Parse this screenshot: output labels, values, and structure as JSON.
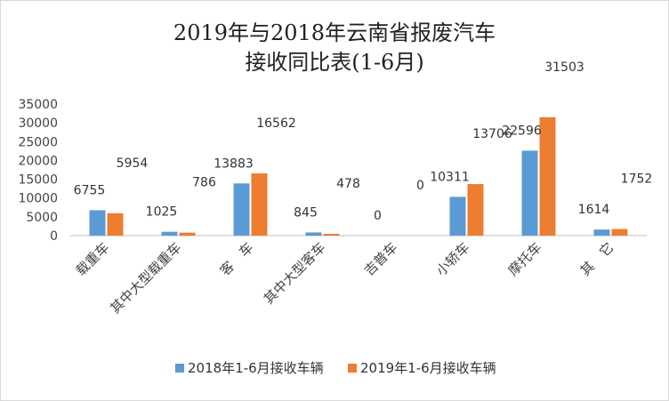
{
  "chart_data": {
    "type": "bar",
    "title": [
      "2019年与2018年云南省报废汽车",
      "接收同比表(1-6月)"
    ],
    "categories": [
      "载重车",
      "其中大型载重车",
      "客　车",
      "其中大型客车",
      "吉普车",
      "小轿车",
      "摩托车",
      "其　它"
    ],
    "series": [
      {
        "name": "2018年1-6月接收车辆",
        "color": "#5b9bd5",
        "values": [
          6755,
          1025,
          13883,
          845,
          0,
          10311,
          22596,
          1614
        ]
      },
      {
        "name": "2019年1-6月接收车辆",
        "color": "#ed7d31",
        "values": [
          5954,
          786,
          16562,
          478,
          0,
          13706,
          31503,
          1752
        ]
      }
    ],
    "ylim": [
      0,
      35000
    ],
    "yticks": [
      0,
      5000,
      10000,
      15000,
      20000,
      25000,
      30000,
      35000
    ],
    "grid": false,
    "legend": "bottom"
  }
}
